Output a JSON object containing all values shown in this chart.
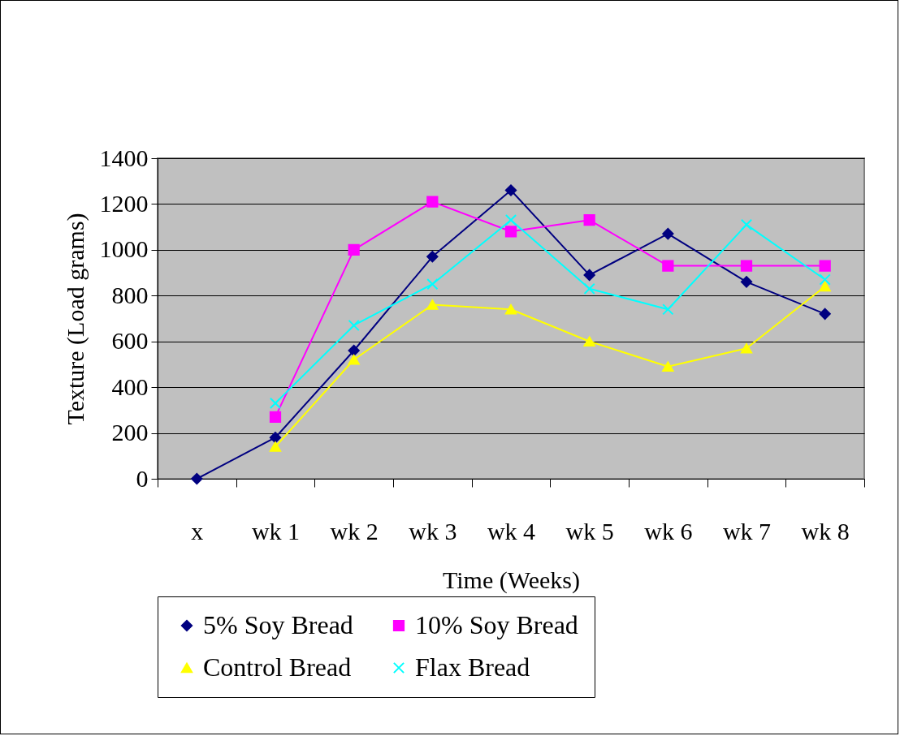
{
  "chart_data": {
    "type": "line",
    "xlabel": "Time (Weeks)",
    "ylabel": "Texture (Load grams)",
    "categories": [
      "x",
      "wk 1",
      "wk 2",
      "wk 3",
      "wk 4",
      "wk 5",
      "wk 6",
      "wk 7",
      "wk 8"
    ],
    "series": [
      {
        "name": "5% Soy Bread",
        "color": "#000080",
        "marker": "diamond",
        "values": [
          0,
          180,
          560,
          970,
          1260,
          890,
          1070,
          860,
          720
        ]
      },
      {
        "name": "10% Soy Bread",
        "color": "#ff00ff",
        "marker": "square",
        "values": [
          null,
          270,
          1000,
          1210,
          1080,
          1130,
          930,
          930,
          930
        ]
      },
      {
        "name": "Control Bread",
        "color": "#ffff00",
        "marker": "triangle",
        "values": [
          null,
          140,
          520,
          760,
          740,
          600,
          490,
          570,
          840
        ]
      },
      {
        "name": "Flax Bread",
        "color": "#00ffff",
        "marker": "cross",
        "values": [
          null,
          330,
          670,
          850,
          1130,
          830,
          740,
          1110,
          870
        ]
      }
    ],
    "ylim": [
      0,
      1400
    ],
    "yticks": [
      0,
      200,
      400,
      600,
      800,
      1000,
      1200,
      1400
    ],
    "grid": "y",
    "legend": "bottom"
  }
}
